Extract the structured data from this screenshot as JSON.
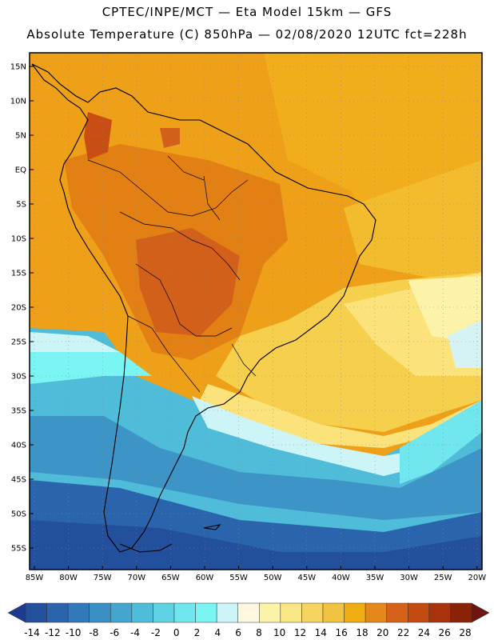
{
  "title_line1": "CPTEC/INPE/MCT —  Eta Model 15km — GFS",
  "title_line2": "Absolute Temperature (C) 850hPa — 02/08/2020 12UTC fct=228h",
  "lat_labels": [
    "15N",
    "10N",
    "5N",
    "EQ",
    "5S",
    "10S",
    "15S",
    "20S",
    "25S",
    "30S",
    "35S",
    "40S",
    "45S",
    "50S",
    "55S"
  ],
  "lon_labels": [
    "85W",
    "80W",
    "75W",
    "70W",
    "65W",
    "60W",
    "55W",
    "50W",
    "45W",
    "40W",
    "35W",
    "30W",
    "25W",
    "20W"
  ],
  "colorbar": {
    "labels": [
      "-14",
      "-12",
      "-10",
      "-8",
      "-6",
      "-4",
      "-2",
      "0",
      "2",
      "4",
      "6",
      "8",
      "10",
      "12",
      "14",
      "16",
      "18",
      "20",
      "22",
      "24",
      "26",
      "28"
    ],
    "colors": [
      "#1e3b8f",
      "#23509c",
      "#2a64ad",
      "#3179b8",
      "#3a8fc4",
      "#44a6cf",
      "#4fbcd9",
      "#5fd2e4",
      "#70e6ee",
      "#7af5f4",
      "#cdf5f7",
      "#fdf8df",
      "#fcf3a9",
      "#f9e685",
      "#f5d462",
      "#f2c340",
      "#f0ad13",
      "#e4881b",
      "#d6621a",
      "#c34a10",
      "#a8330c",
      "#8a2208",
      "#6d1510"
    ]
  }
}
